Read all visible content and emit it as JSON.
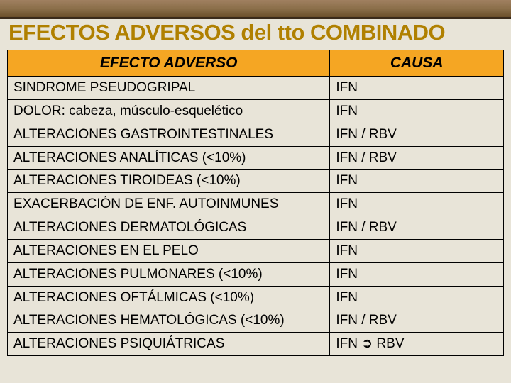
{
  "title": "EFECTOS ADVERSOS del tto COMBINADO",
  "table": {
    "headers": {
      "effect": "EFECTO ADVERSO",
      "cause": "CAUSA"
    },
    "rows": [
      {
        "effect": "SINDROME PSEUDOGRIPAL",
        "cause": "IFN"
      },
      {
        "effect": "DOLOR: cabeza, músculo-esquelético",
        "cause": "IFN"
      },
      {
        "effect": "ALTERACIONES GASTROINTESTINALES",
        "cause": "IFN / RBV"
      },
      {
        "effect": "ALTERACIONES ANALÍTICAS (<10%)",
        "cause": "IFN / RBV"
      },
      {
        "effect": "ALTERACIONES TIROIDEAS (<10%)",
        "cause": "IFN"
      },
      {
        "effect": "EXACERBACIÓN DE ENF. AUTOINMUNES",
        "cause": "IFN"
      },
      {
        "effect": "ALTERACIONES DERMATOLÓGICAS",
        "cause": "IFN / RBV"
      },
      {
        "effect": "ALTERACIONES EN EL PELO",
        "cause": "IFN"
      },
      {
        "effect": "ALTERACIONES PULMONARES (<10%)",
        "cause": "IFN"
      },
      {
        "effect": "ALTERACIONES OFTÁLMICAS (<10%)",
        "cause": "IFN"
      },
      {
        "effect": "ALTERACIONES HEMATOLÓGICAS (<10%)",
        "cause": "IFN / RBV"
      },
      {
        "effect": "ALTERACIONES PSIQUIÁTRICAS",
        "cause": "IFN ➲ RBV"
      }
    ]
  },
  "colors": {
    "header_bg": "#f5a623",
    "cell_bg": "#e8e4d8",
    "border": "#000000",
    "title_color": "#b08000",
    "body_bg": "#e8e4d8"
  }
}
